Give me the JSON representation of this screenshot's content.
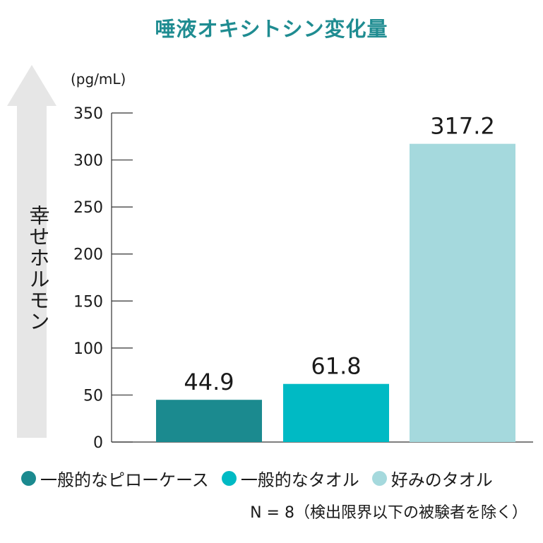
{
  "title": "唾液オキシトシン変化量",
  "side_label": "幸せホルモン",
  "unit": "(pg/mL)",
  "note": "N = 8（検出限界以下の被験者を除く）",
  "colors": {
    "title": "#1f8c91",
    "arrow": "#e6e6e6",
    "axis": "#333333"
  },
  "chart_data": {
    "type": "bar",
    "categories": [
      "一般的なピローケース",
      "一般的なタオル",
      "好みのタオル"
    ],
    "values": [
      44.9,
      61.8,
      317.2
    ],
    "value_labels": [
      "44.9",
      "61.8",
      "317.2"
    ],
    "colors": [
      "#1b8a8f",
      "#00bac4",
      "#a5d9dd"
    ],
    "ylim": [
      0,
      350
    ],
    "yticks": [
      0,
      50,
      100,
      150,
      200,
      250,
      300,
      350
    ],
    "grid": false,
    "legend_position": "bottom",
    "title": "唾液オキシトシン変化量",
    "ylabel": "幸せホルモン",
    "xlabel": ""
  }
}
